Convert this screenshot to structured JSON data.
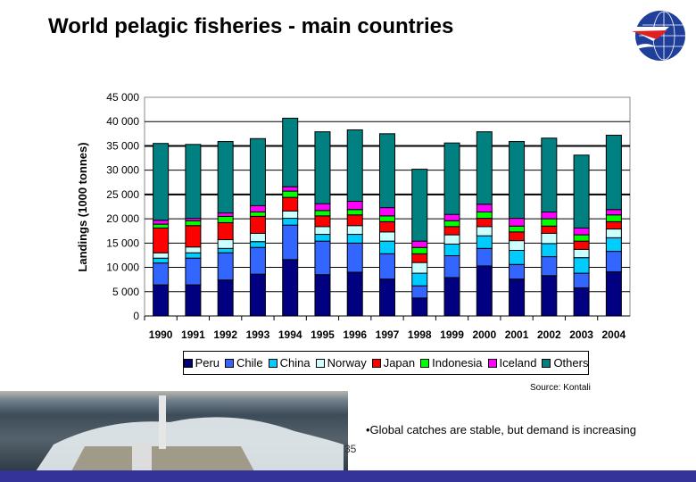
{
  "title": "World pelagic fisheries - main countries",
  "source": "Source: Kontali",
  "bullet": "•Global catches are stable, but demand is increasing",
  "page_number": "35",
  "chart_data": {
    "type": "bar",
    "stacked": true,
    "title": "",
    "xlabel": "",
    "ylabel": "Landings (1000 tonnes)",
    "ylim": [
      0,
      45000
    ],
    "yticks": [
      0,
      5000,
      10000,
      15000,
      20000,
      25000,
      30000,
      35000,
      40000,
      45000
    ],
    "ytick_labels": [
      "0",
      "5 000",
      "10 000",
      "15 000",
      "20 000",
      "25 000",
      "30 000",
      "35 000",
      "40 000",
      "45 000"
    ],
    "categories": [
      "1990",
      "1991",
      "1992",
      "1993",
      "1994",
      "1995",
      "1996",
      "1997",
      "1998",
      "1999",
      "2000",
      "2001",
      "2002",
      "2003",
      "2004"
    ],
    "legend_position": "bottom",
    "series": [
      {
        "name": "Peru",
        "color": "#000080",
        "values": [
          6400,
          6400,
          7400,
          8600,
          11600,
          8500,
          9000,
          7600,
          3700,
          7900,
          10300,
          7600,
          8300,
          5800,
          9100
        ]
      },
      {
        "name": "Chile",
        "color": "#3366ff",
        "values": [
          4500,
          5500,
          5600,
          5500,
          7100,
          6900,
          6000,
          5200,
          2500,
          4500,
          3600,
          3000,
          3900,
          3000,
          4200
        ]
      },
      {
        "name": "China",
        "color": "#00ccff",
        "values": [
          1000,
          1100,
          900,
          1200,
          1400,
          1400,
          1800,
          2600,
          2600,
          2400,
          2600,
          2900,
          2700,
          3200,
          2800
        ]
      },
      {
        "name": "Norway",
        "color": "#ccffff",
        "values": [
          1100,
          1200,
          1800,
          1700,
          1500,
          1600,
          1800,
          1900,
          2200,
          1900,
          1900,
          2000,
          2100,
          1700,
          1800
        ]
      },
      {
        "name": "Japan",
        "color": "#ff0000",
        "values": [
          5100,
          4400,
          3500,
          3500,
          2800,
          2200,
          2200,
          2100,
          1800,
          1700,
          1700,
          1800,
          1500,
          1700,
          1500
        ]
      },
      {
        "name": "Indonesia",
        "color": "#00ff00",
        "values": [
          800,
          1000,
          1300,
          900,
          1300,
          1100,
          1100,
          1200,
          1300,
          1200,
          1300,
          1200,
          1500,
          1300,
          1400
        ]
      },
      {
        "name": "Iceland",
        "color": "#ff00ff",
        "values": [
          800,
          500,
          700,
          1300,
          900,
          1400,
          1700,
          1700,
          1300,
          1300,
          1600,
          1600,
          1400,
          1400,
          1100
        ]
      },
      {
        "name": "Others",
        "color": "#008080",
        "values": [
          15800,
          15200,
          14700,
          13800,
          14100,
          14800,
          14700,
          15200,
          14800,
          14700,
          14900,
          15800,
          15200,
          15000,
          15300
        ]
      }
    ]
  }
}
